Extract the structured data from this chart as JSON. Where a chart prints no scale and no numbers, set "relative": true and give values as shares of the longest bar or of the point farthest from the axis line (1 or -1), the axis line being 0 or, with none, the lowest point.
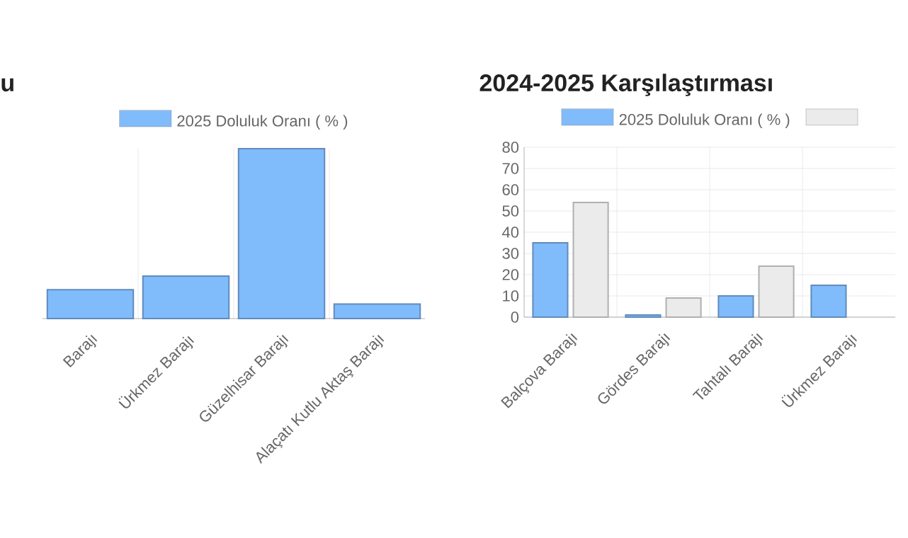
{
  "chart_data": [
    {
      "type": "bar",
      "title": "u",
      "categories": [
        "Barajı",
        "Ürkmez Barajı",
        "Güzelhisar Barajı",
        "Alaçatı Kutlu Aktaş Barajı"
      ],
      "relative": true,
      "grid": true,
      "legend": "top",
      "series": [
        {
          "name": "2025 Doluluk Oranı ( % )",
          "color": "#80bbfb",
          "values": [
            0.17,
            0.25,
            1,
            0.085
          ]
        }
      ]
    },
    {
      "type": "bar",
      "title": "2024-2025 Karşılaştırması",
      "categories": [
        "Balçova Barajı",
        "Gördes Barajı",
        "Tahtalı Barajı",
        "Ürkmez Barajı"
      ],
      "ylim": [
        0,
        80
      ],
      "yticks": [
        0,
        10,
        20,
        30,
        40,
        50,
        60,
        70,
        80
      ],
      "grid": true,
      "legend": "top",
      "series": [
        {
          "name": "2025 Doluluk Oranı ( % )",
          "color": "#80bbfb",
          "values": [
            35,
            1,
            10,
            15
          ]
        },
        {
          "color": "#ebebeb",
          "values": [
            54,
            9,
            24,
            null
          ]
        }
      ]
    }
  ]
}
